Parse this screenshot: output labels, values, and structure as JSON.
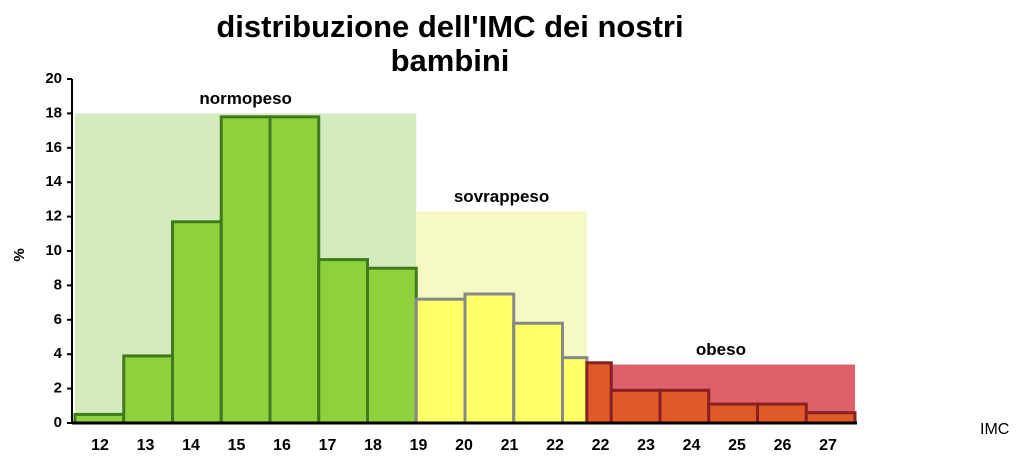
{
  "chart_data": {
    "type": "bar",
    "title": "distribuzione dell'IMC dei nostri bambini",
    "y_label": "%",
    "x_label": "IMC",
    "categories": [
      "12",
      "13",
      "14",
      "15",
      "16",
      "17",
      "18",
      "19",
      "20",
      "21",
      "22",
      "22",
      "23",
      "24",
      "25",
      "26",
      "27"
    ],
    "values": [
      0.5,
      3.9,
      11.7,
      17.8,
      17.8,
      9.5,
      9.0,
      7.2,
      7.5,
      5.8,
      3.8,
      3.5,
      1.9,
      1.9,
      1.1,
      1.1,
      0.6
    ],
    "colors": [
      "#8fd13c",
      "#8fd13c",
      "#8fd13c",
      "#8fd13c",
      "#8fd13c",
      "#8fd13c",
      "#8fd13c",
      "#ffff66",
      "#ffff66",
      "#ffff66",
      "#ffff66",
      "#e05a28",
      "#e05a28",
      "#e05a28",
      "#e05a28",
      "#e05a28",
      "#e05a28"
    ],
    "regions": [
      {
        "label": "normopeso",
        "from": 0,
        "to": 6,
        "height": 18,
        "color": "#cfe8b8"
      },
      {
        "label": "sovrappeso",
        "from": 7,
        "to": 10,
        "height": 12.3,
        "color": "#f6f8bf"
      },
      {
        "label": "obeso",
        "from": 11,
        "to": 16,
        "height": 3.4,
        "color": "#d9505a"
      }
    ],
    "ylim": [
      0,
      20
    ],
    "yticks": [
      0,
      2,
      4,
      6,
      8,
      10,
      12,
      14,
      16,
      18,
      20
    ]
  }
}
